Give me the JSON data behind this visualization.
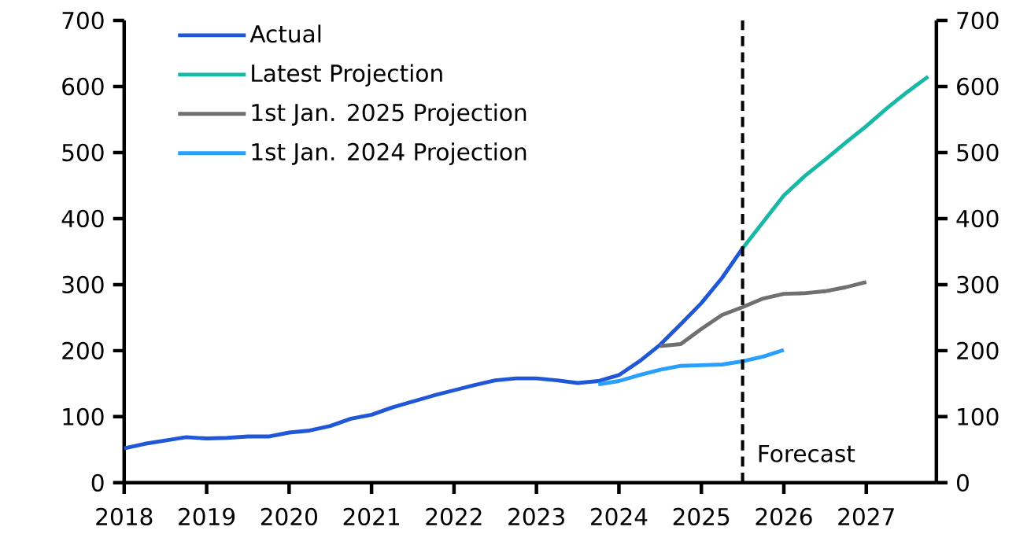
{
  "chart_data": {
    "type": "line",
    "xlim": [
      2018,
      2027.85
    ],
    "xticks": [
      2018,
      2019,
      2020,
      2021,
      2022,
      2023,
      2024,
      2025,
      2026,
      2027
    ],
    "ylim": [
      0,
      700
    ],
    "yticks": [
      0,
      100,
      200,
      300,
      400,
      500,
      600,
      700
    ],
    "y2lim": [
      0,
      700
    ],
    "y2ticks": [
      0,
      100,
      200,
      300,
      400,
      500,
      600,
      700
    ],
    "grid": false,
    "legend": "top left",
    "marker": "none",
    "line_style": "solid",
    "ref_lines": [
      {
        "axis": "x",
        "value": 2025.5,
        "label": "Forecast",
        "color": "#000000",
        "line_style": "dashed"
      }
    ],
    "series": [
      {
        "name": "Actual",
        "color": "#1f57d6",
        "x": [
          2018,
          2018.25,
          2018.5,
          2018.75,
          2019,
          2019.25,
          2019.5,
          2019.75,
          2020,
          2020.25,
          2020.5,
          2020.75,
          2021,
          2021.25,
          2021.5,
          2021.75,
          2022,
          2022.25,
          2022.5,
          2022.75,
          2023,
          2023.25,
          2023.5,
          2023.75,
          2024,
          2024.25,
          2024.5,
          2024.75,
          2025,
          2025.25,
          2025.5
        ],
        "values": [
          52,
          59,
          64,
          69,
          67,
          68,
          70,
          70,
          76,
          79,
          86,
          97,
          103,
          114,
          123,
          132,
          140,
          148,
          155,
          158,
          158,
          155,
          151,
          154,
          163,
          184,
          209,
          240,
          272,
          310,
          355
        ]
      },
      {
        "name": "Latest Projection",
        "color": "#17b8a5",
        "x": [
          2025.5,
          2025.75,
          2026,
          2026.25,
          2026.5,
          2026.75,
          2027,
          2027.25,
          2027.5,
          2027.75
        ],
        "values": [
          355,
          395,
          435,
          464,
          489,
          515,
          540,
          567,
          592,
          615
        ]
      },
      {
        "name": "1st Jan. 2025 Projection",
        "color": "#707070",
        "x": [
          2024.5,
          2024.75,
          2025,
          2025.25,
          2025.5,
          2025.75,
          2026,
          2026.25,
          2026.5,
          2026.75,
          2027
        ],
        "values": [
          207,
          210,
          233,
          254,
          266,
          279,
          286,
          287,
          290,
          296,
          304
        ]
      },
      {
        "name": "1st Jan. 2024 Projection",
        "color": "#29a0ff",
        "x": [
          2023.75,
          2024,
          2024.25,
          2024.5,
          2024.75,
          2025,
          2025.25,
          2025.5,
          2025.75,
          2026
        ],
        "values": [
          149,
          154,
          163,
          171,
          177,
          178,
          179,
          184,
          191,
          201
        ]
      }
    ]
  }
}
